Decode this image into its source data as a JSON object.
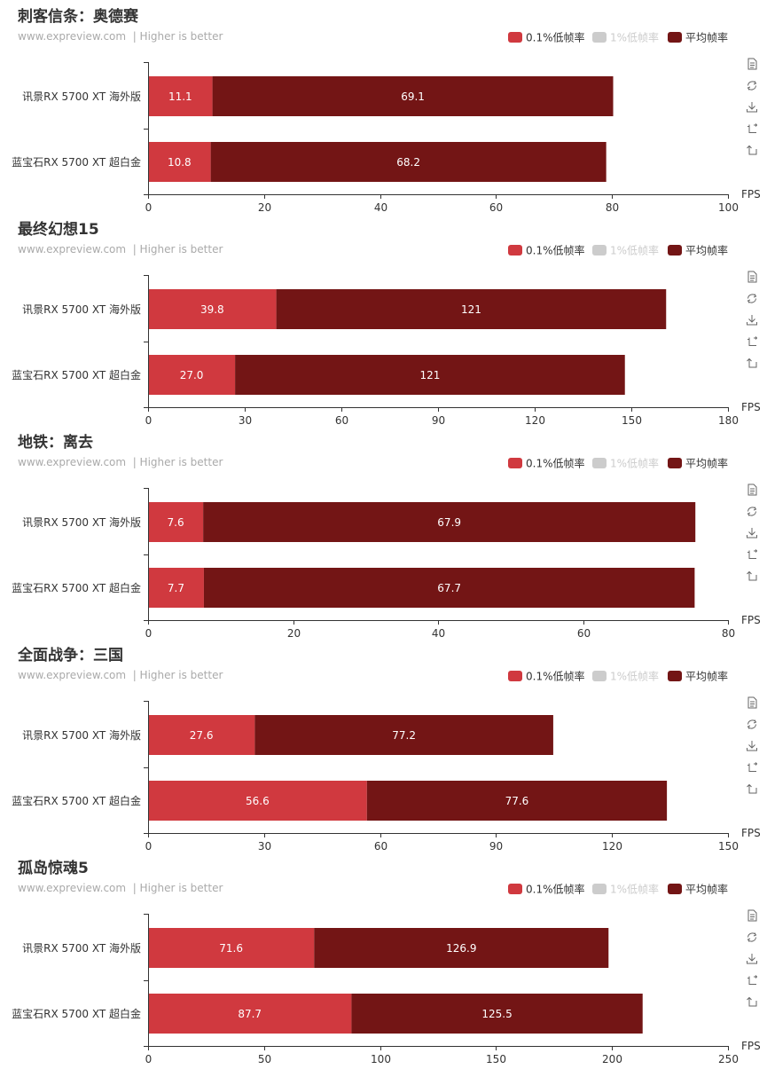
{
  "subtitle": "www.expreview.com  | Higher is better",
  "colors": {
    "series_low01": "#d0393f",
    "series_low1": "#cccccc",
    "series_avg": "#731515",
    "axis": "#333333"
  },
  "legend": [
    {
      "name": "0.1%低帧率",
      "color": "#d0393f",
      "dimmed": false
    },
    {
      "name": "1%低帧率",
      "color": "#cccccc",
      "dimmed": true
    },
    {
      "name": "平均帧率",
      "color": "#731515",
      "dimmed": false
    }
  ],
  "toolbox": [
    "data-view-icon",
    "restore-icon",
    "download-icon",
    "zoom-icon",
    "zoom-reset-icon"
  ],
  "chart_data": [
    {
      "type": "bar",
      "orientation": "horizontal",
      "stacked": true,
      "title": "刺客信条：奥德赛",
      "categories": [
        "讯景RX 5700 XT 海外版",
        "蓝宝石RX 5700 XT 超白金"
      ],
      "series": [
        {
          "name": "0.1%低帧率",
          "values": [
            11.1,
            10.8
          ]
        },
        {
          "name": "1%低帧率",
          "values": [
            null,
            null
          ]
        },
        {
          "name": "平均帧率",
          "values": [
            69.1,
            68.2
          ]
        }
      ],
      "xlabel": "FPS",
      "xlim": [
        0,
        100
      ],
      "ticks": [
        0,
        20,
        40,
        60,
        80,
        100
      ],
      "legend_position": "top-right"
    },
    {
      "type": "bar",
      "orientation": "horizontal",
      "stacked": true,
      "title": "最终幻想15",
      "categories": [
        "讯景RX 5700 XT 海外版",
        "蓝宝石RX 5700 XT 超白金"
      ],
      "series": [
        {
          "name": "0.1%低帧率",
          "values": [
            39.8,
            27.0
          ]
        },
        {
          "name": "1%低帧率",
          "values": [
            null,
            null
          ]
        },
        {
          "name": "平均帧率",
          "values": [
            121,
            121
          ]
        }
      ],
      "xlabel": "FPS",
      "xlim": [
        0,
        180
      ],
      "ticks": [
        0,
        30,
        60,
        90,
        120,
        150,
        180
      ],
      "legend_position": "top-right"
    },
    {
      "type": "bar",
      "orientation": "horizontal",
      "stacked": true,
      "title": "地铁：离去",
      "categories": [
        "讯景RX 5700 XT 海外版",
        "蓝宝石RX 5700 XT 超白金"
      ],
      "series": [
        {
          "name": "0.1%低帧率",
          "values": [
            7.6,
            7.7
          ]
        },
        {
          "name": "1%低帧率",
          "values": [
            null,
            null
          ]
        },
        {
          "name": "平均帧率",
          "values": [
            67.9,
            67.7
          ]
        }
      ],
      "xlabel": "FPS",
      "xlim": [
        0,
        80
      ],
      "ticks": [
        0,
        20,
        40,
        60,
        80
      ],
      "legend_position": "top-right"
    },
    {
      "type": "bar",
      "orientation": "horizontal",
      "stacked": true,
      "title": "全面战争：三国",
      "categories": [
        "讯景RX 5700 XT 海外版",
        "蓝宝石RX 5700 XT 超白金"
      ],
      "series": [
        {
          "name": "0.1%低帧率",
          "values": [
            27.6,
            56.6
          ]
        },
        {
          "name": "1%低帧率",
          "values": [
            null,
            null
          ]
        },
        {
          "name": "平均帧率",
          "values": [
            77.2,
            77.6
          ]
        }
      ],
      "xlabel": "FPS",
      "xlim": [
        0,
        150
      ],
      "ticks": [
        0,
        30,
        60,
        90,
        120,
        150
      ],
      "legend_position": "top-right"
    },
    {
      "type": "bar",
      "orientation": "horizontal",
      "stacked": true,
      "title": "孤岛惊魂5",
      "categories": [
        "讯景RX 5700 XT 海外版",
        "蓝宝石RX 5700 XT 超白金"
      ],
      "series": [
        {
          "name": "0.1%低帧率",
          "values": [
            71.6,
            87.7
          ]
        },
        {
          "name": "1%低帧率",
          "values": [
            null,
            null
          ]
        },
        {
          "name": "平均帧率",
          "values": [
            126.9,
            125.5
          ]
        }
      ],
      "xlabel": "FPS",
      "xlim": [
        0,
        250
      ],
      "ticks": [
        0,
        50,
        100,
        150,
        200,
        250
      ],
      "legend_position": "top-right"
    }
  ]
}
